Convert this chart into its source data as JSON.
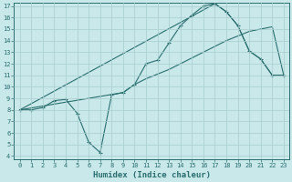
{
  "xlabel": "Humidex (Indice chaleur)",
  "xlim": [
    -0.5,
    23.5
  ],
  "ylim": [
    3.7,
    17.3
  ],
  "xticks": [
    0,
    1,
    2,
    3,
    4,
    5,
    6,
    7,
    8,
    9,
    10,
    11,
    12,
    13,
    14,
    15,
    16,
    17,
    18,
    19,
    20,
    21,
    22,
    23
  ],
  "yticks": [
    4,
    5,
    6,
    7,
    8,
    9,
    10,
    11,
    12,
    13,
    14,
    15,
    16,
    17
  ],
  "line_color": "#2a6e6e",
  "bg_color": "#c8e8ea",
  "grid_color": "#a8cece",
  "line1_x": [
    0,
    1,
    2,
    3,
    4,
    5,
    6,
    7,
    8,
    9,
    10,
    11,
    12,
    13,
    14,
    15,
    16,
    17,
    18,
    19,
    20,
    21,
    22,
    23
  ],
  "line1_y": [
    8,
    8,
    8.2,
    8.8,
    8.9,
    7.7,
    5.2,
    4.3,
    9.3,
    9.5,
    10.2,
    12.0,
    12.3,
    13.8,
    15.3,
    16.2,
    17.0,
    17.2,
    16.5,
    15.3,
    13.1,
    12.4,
    11.0,
    11.0
  ],
  "line2_x": [
    0,
    17,
    18,
    19,
    20,
    21,
    22,
    23
  ],
  "line2_y": [
    8,
    17.2,
    16.5,
    15.3,
    13.1,
    12.4,
    11.0,
    11.0
  ],
  "line3_x": [
    0,
    9,
    10,
    11,
    12,
    13,
    14,
    15,
    16,
    17,
    18,
    19,
    20,
    21,
    22,
    23
  ],
  "line3_y": [
    8,
    9.5,
    10.2,
    10.7,
    11.1,
    11.5,
    12.0,
    12.5,
    13.0,
    13.5,
    14.0,
    14.4,
    14.8,
    15.0,
    15.2,
    11.0
  ]
}
